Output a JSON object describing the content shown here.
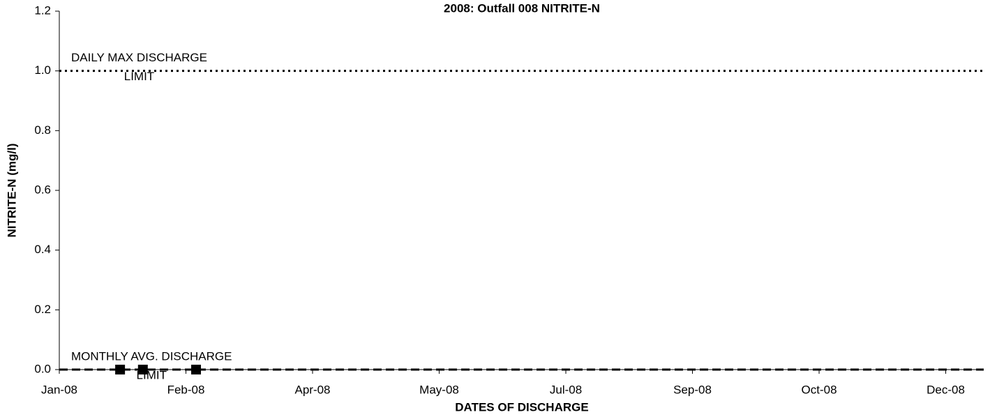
{
  "chart_data": {
    "type": "scatter",
    "title": "2008: Outfall 008 NITRITE-N",
    "x_label": "DATES OF DISCHARGE",
    "y_label": "NITRITE-N (mg/l)",
    "series": [
      {
        "name": "NITRITE-N",
        "color": "#000000",
        "marker": "square",
        "x": [
          "2008-01-25",
          "2008-02-03",
          "2008-02-24"
        ],
        "values": [
          0,
          0,
          0
        ]
      }
    ],
    "limits": [
      {
        "label": [
          "DAILY MAX DISCHARGE",
          "LIMIT"
        ],
        "value": 1,
        "color": "#000000",
        "style": "dotted"
      },
      {
        "label": [
          "MONTHLY AVG. DISCHARGE",
          "LIMIT"
        ],
        "value": 0,
        "color": "#000000",
        "style": "dashed"
      }
    ],
    "xlim": [
      "2008-01-01",
      "2008-12-31"
    ],
    "xticks": [
      {
        "value": "2008-01-01",
        "label": "Jan-08"
      },
      {
        "value": "2008-02-20",
        "label": "Feb-08"
      },
      {
        "value": "2008-04-10",
        "label": "Apr-08"
      },
      {
        "value": "2008-05-30",
        "label": "May-08"
      },
      {
        "value": "2008-07-19",
        "label": "Jul-08"
      },
      {
        "value": "2008-09-07",
        "label": "Sep-08"
      },
      {
        "value": "2008-10-27",
        "label": "Oct-08"
      },
      {
        "value": "2008-12-16",
        "label": "Dec-08"
      }
    ],
    "ylim": [
      0,
      1.2
    ],
    "yticks": [
      {
        "value": 0,
        "label": "0.0"
      },
      {
        "value": 0.2,
        "label": "0.2"
      },
      {
        "value": 0.4,
        "label": "0.4"
      },
      {
        "value": 0.6,
        "label": "0.6"
      },
      {
        "value": 0.8,
        "label": "0.8"
      },
      {
        "value": 1,
        "label": "1.0"
      },
      {
        "value": 1.2,
        "label": "1.2"
      }
    ],
    "grid": false
  }
}
